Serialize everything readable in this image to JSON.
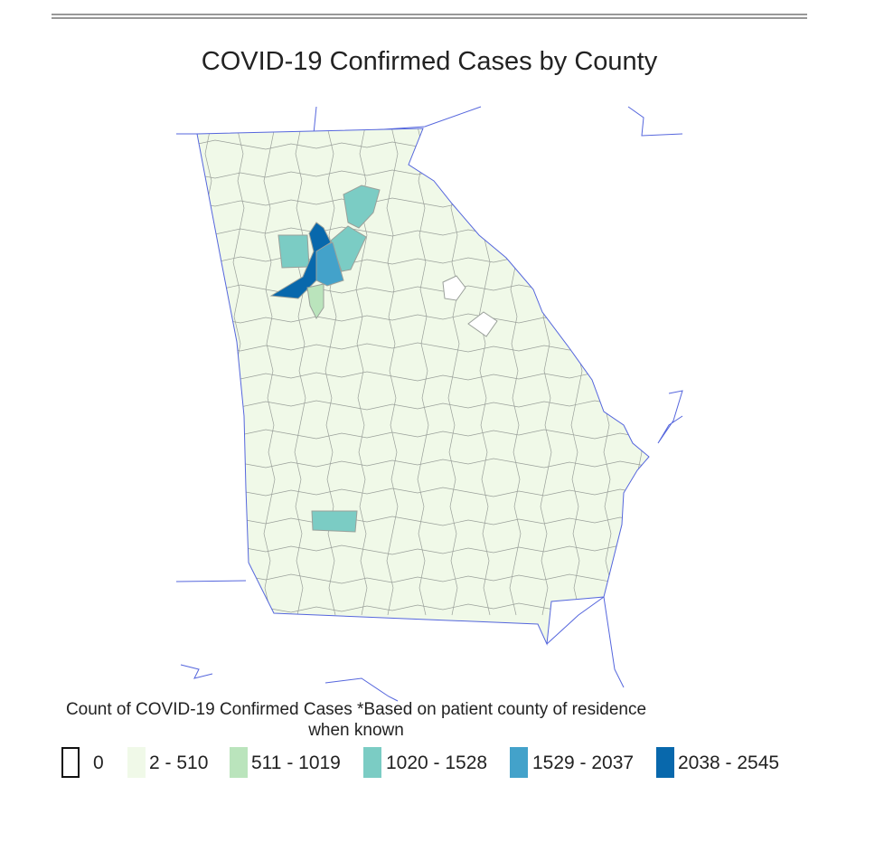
{
  "title": "COVID-19 Confirmed Cases by County",
  "legend": {
    "title": "Count of COVID-19 Confirmed Cases *Based on patient county of residence when known",
    "items": [
      {
        "label": "0",
        "color": "#ffffff"
      },
      {
        "label": "2 - 510",
        "color": "#f0f9e8"
      },
      {
        "label": "511 - 1019",
        "color": "#bae4bc"
      },
      {
        "label": "1020 - 1528",
        "color": "#7bccc4"
      },
      {
        "label": "1529 - 2037",
        "color": "#43a2ca"
      },
      {
        "label": "2038 - 2545",
        "color": "#0868ac"
      }
    ]
  }
}
